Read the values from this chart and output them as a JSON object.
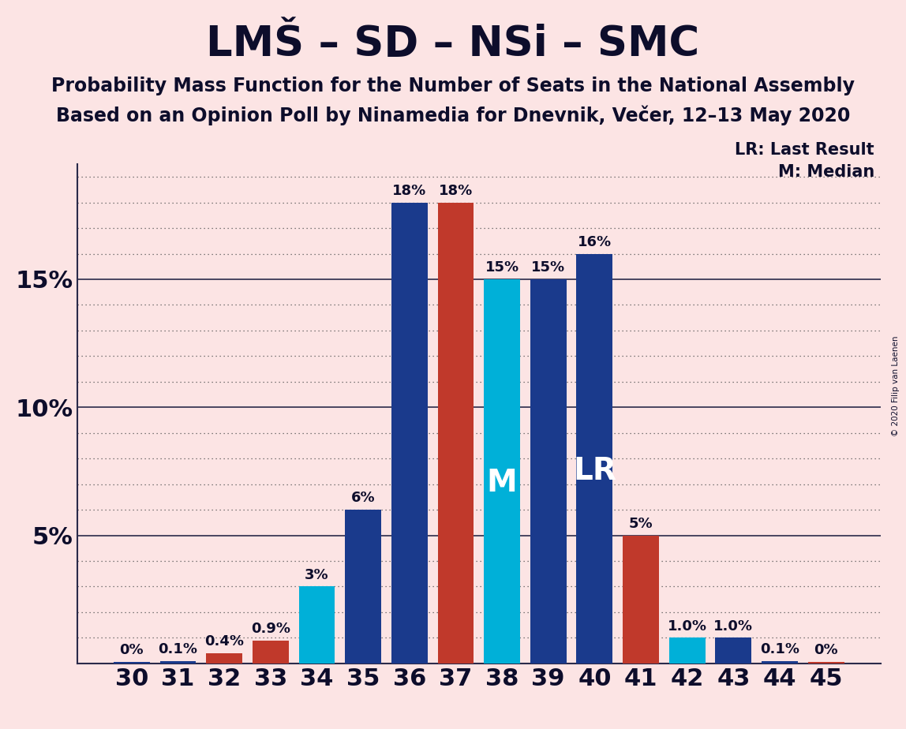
{
  "title": "LMŠ – SD – NSi – SMC",
  "subtitle1": "Probability Mass Function for the Number of Seats in the National Assembly",
  "subtitle2": "Based on an Opinion Poll by Ninamedia for Dnevnik, Večer, 12–13 May 2020",
  "copyright": "© 2020 Filip van Laenen",
  "background_color": "#fce4e4",
  "categories": [
    30,
    31,
    32,
    33,
    34,
    35,
    36,
    37,
    38,
    39,
    40,
    41,
    42,
    43,
    44,
    45
  ],
  "values": [
    0.05,
    0.1,
    0.4,
    0.9,
    3.0,
    6.0,
    18.0,
    18.0,
    15.0,
    15.0,
    16.0,
    5.0,
    1.0,
    1.0,
    0.1,
    0.05
  ],
  "labels": [
    "0%",
    "0.1%",
    "0.4%",
    "0.9%",
    "3%",
    "6%",
    "18%",
    "18%",
    "15%",
    "15%",
    "16%",
    "5%",
    "1.0%",
    "1.0%",
    "0.1%",
    "0%"
  ],
  "colors": [
    "#1a3a8c",
    "#1a3a8c",
    "#c0392b",
    "#c0392b",
    "#00b0d8",
    "#1a3a8c",
    "#1a3a8c",
    "#c0392b",
    "#00b0d8",
    "#1a3a8c",
    "#1a3a8c",
    "#c0392b",
    "#00b0d8",
    "#1a3a8c",
    "#1a3a8c",
    "#c0392b"
  ],
  "median_seat": 38,
  "lr_seat": 40,
  "ylim_max": 19.5,
  "yticks": [
    5,
    10,
    15
  ],
  "ytick_labels": [
    "5%",
    "10%",
    "15%"
  ],
  "dotted_lines": [
    1,
    2,
    3,
    4,
    6,
    7,
    8,
    9,
    11,
    12,
    13,
    14,
    16,
    17,
    18,
    19
  ],
  "solid_lines": [
    5,
    10,
    15
  ],
  "legend_lr": "LR: Last Result",
  "legend_m": "M: Median",
  "title_fontsize": 38,
  "subtitle_fontsize": 17,
  "tick_fontsize": 22,
  "label_fontsize": 13,
  "inner_label_fontsize": 28
}
